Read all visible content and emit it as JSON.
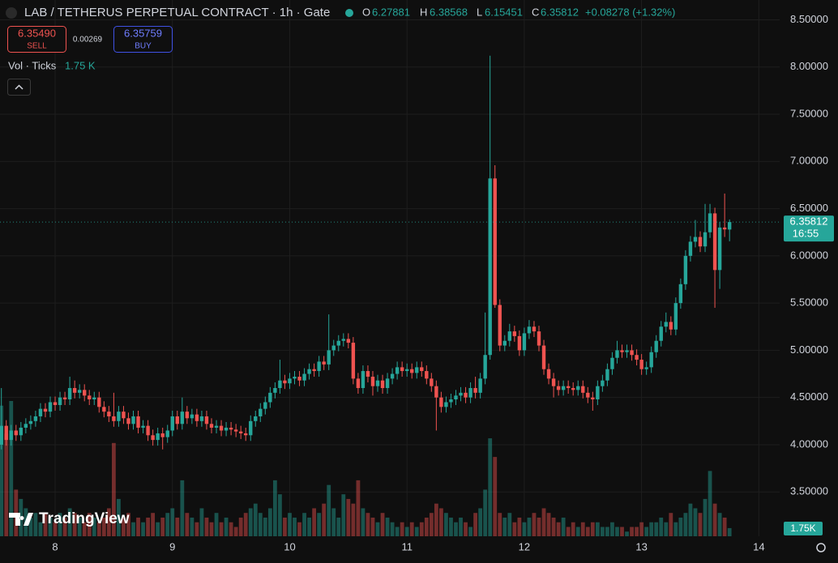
{
  "header": {
    "title": "LAB / TETHERUS PERPETUAL CONTRACT · 1h · Gate",
    "ohlc_labels": [
      "O",
      "H",
      "L",
      "C"
    ],
    "change": "+0.08278 (+1.32%)",
    "sell": {
      "price": "6.35490",
      "label": "SELL"
    },
    "spread": "0.00269",
    "buy": {
      "price": "6.35759",
      "label": "BUY"
    },
    "volume_legend": {
      "name": "Vol · Ticks",
      "value": "1.75 K"
    },
    "logo": "TradingView"
  },
  "chart_data": {
    "type": "candlestick",
    "up_color": "#26a69a",
    "down_color": "#ef5350",
    "grid": true,
    "ylim": [
      3.03,
      8.71
    ],
    "yticks": [
      {
        "value": 3.5,
        "label": "3.50000"
      },
      {
        "value": 4.0,
        "label": "4.00000"
      },
      {
        "value": 4.5,
        "label": "4.50000"
      },
      {
        "value": 5.0,
        "label": "5.00000"
      },
      {
        "value": 5.5,
        "label": "5.50000"
      },
      {
        "value": 6.0,
        "label": "6.00000"
      },
      {
        "value": 6.5,
        "label": "6.50000"
      },
      {
        "value": 7.0,
        "label": "7.00000"
      },
      {
        "value": 7.5,
        "label": "7.50000"
      },
      {
        "value": 8.0,
        "label": "8.00000"
      },
      {
        "value": 8.5,
        "label": "8.50000"
      }
    ],
    "price_label_time": "16:55",
    "volume_label": "1.75K",
    "categories": [
      null,
      null,
      null,
      null,
      null,
      null,
      null,
      null,
      null,
      null,
      null,
      "8",
      null,
      null,
      null,
      null,
      null,
      null,
      null,
      null,
      null,
      null,
      null,
      null,
      null,
      null,
      null,
      null,
      null,
      null,
      null,
      null,
      null,
      null,
      null,
      "9",
      null,
      null,
      null,
      null,
      null,
      null,
      null,
      null,
      null,
      null,
      null,
      null,
      null,
      null,
      null,
      null,
      null,
      null,
      null,
      null,
      null,
      null,
      null,
      "10",
      null,
      null,
      null,
      null,
      null,
      null,
      null,
      null,
      null,
      null,
      null,
      null,
      null,
      null,
      null,
      null,
      null,
      null,
      null,
      null,
      null,
      null,
      null,
      "11",
      null,
      null,
      null,
      null,
      null,
      null,
      null,
      null,
      null,
      null,
      null,
      null,
      null,
      null,
      null,
      null,
      null,
      null,
      null,
      null,
      null,
      null,
      null,
      "12",
      null,
      null,
      null,
      null,
      null,
      null,
      null,
      null,
      null,
      null,
      null,
      null,
      null,
      null,
      null,
      null,
      null,
      null,
      null,
      null,
      null,
      null,
      null,
      "13",
      null,
      null,
      null,
      null,
      null,
      null,
      null,
      null,
      null,
      null,
      null,
      null,
      null,
      null,
      null,
      null,
      null,
      null,
      null,
      null,
      null,
      null,
      null,
      "14"
    ],
    "open": [
      4.0,
      4.2,
      4.05,
      4.15,
      4.1,
      4.18,
      4.22,
      4.25,
      4.3,
      4.38,
      4.35,
      4.45,
      4.42,
      4.5,
      4.48,
      4.6,
      4.55,
      4.58,
      4.52,
      4.48,
      4.5,
      4.4,
      4.35,
      4.3,
      4.25,
      4.35,
      4.28,
      4.22,
      4.3,
      4.18,
      4.2,
      4.1,
      4.05,
      4.12,
      4.08,
      4.15,
      4.3,
      4.22,
      4.35,
      4.28,
      4.32,
      4.25,
      4.3,
      4.22,
      4.18,
      4.2,
      4.15,
      4.18,
      4.16,
      4.14,
      4.12,
      4.1,
      4.25,
      4.3,
      4.38,
      4.45,
      4.55,
      4.6,
      4.68,
      4.65,
      4.7,
      4.72,
      4.68,
      4.75,
      4.8,
      4.78,
      4.88,
      4.85,
      5.0,
      5.05,
      5.1,
      5.12,
      5.08,
      4.7,
      4.6,
      4.78,
      4.72,
      4.62,
      4.68,
      4.6,
      4.7,
      4.75,
      4.82,
      4.78,
      4.8,
      4.76,
      4.82,
      4.78,
      4.7,
      4.62,
      4.5,
      4.4,
      4.45,
      4.48,
      4.52,
      4.55,
      4.5,
      4.6,
      4.55,
      4.7,
      4.95,
      6.82,
      5.48,
      5.05,
      5.1,
      5.2,
      5.15,
      5.0,
      5.18,
      5.25,
      5.2,
      5.05,
      4.8,
      4.7,
      4.62,
      4.58,
      4.62,
      4.6,
      4.58,
      4.62,
      4.55,
      4.5,
      4.48,
      4.62,
      4.68,
      4.8,
      4.92,
      5.0,
      4.98,
      5.0,
      4.95,
      4.9,
      4.8,
      4.82,
      4.98,
      5.1,
      5.25,
      5.3,
      5.22,
      5.5,
      5.7,
      6.0,
      6.15,
      6.2,
      6.1,
      6.25,
      6.45,
      5.85,
      6.3,
      6.27881,
      null,
      null,
      null,
      null,
      null,
      null
    ],
    "high": [
      4.6,
      4.26,
      4.21,
      4.21,
      4.24,
      4.28,
      4.31,
      4.36,
      4.44,
      4.44,
      4.51,
      4.51,
      4.56,
      4.56,
      4.72,
      4.68,
      4.64,
      4.64,
      4.58,
      4.56,
      4.56,
      4.46,
      4.41,
      4.55,
      4.41,
      4.41,
      4.34,
      4.36,
      4.36,
      4.26,
      4.26,
      4.16,
      4.18,
      4.18,
      4.21,
      4.36,
      4.36,
      4.5,
      4.41,
      4.38,
      4.38,
      4.36,
      4.36,
      4.28,
      4.26,
      4.26,
      4.24,
      4.24,
      4.22,
      4.2,
      4.18,
      4.31,
      4.36,
      4.44,
      4.51,
      4.61,
      4.66,
      4.9,
      4.74,
      4.76,
      4.78,
      4.78,
      4.81,
      4.86,
      4.86,
      4.94,
      4.94,
      5.38,
      5.11,
      5.16,
      5.18,
      5.18,
      5.14,
      4.76,
      4.84,
      4.84,
      4.78,
      4.74,
      4.74,
      4.76,
      4.81,
      4.88,
      4.88,
      4.86,
      4.86,
      4.88,
      4.88,
      4.84,
      4.76,
      4.68,
      4.56,
      4.51,
      4.54,
      4.58,
      4.61,
      4.61,
      4.66,
      4.72,
      4.76,
      5.4,
      8.12,
      6.96,
      5.54,
      5.16,
      5.28,
      5.26,
      5.21,
      5.24,
      5.32,
      5.31,
      5.26,
      5.11,
      4.86,
      4.76,
      4.68,
      4.68,
      4.68,
      4.66,
      4.68,
      4.68,
      4.61,
      4.56,
      4.68,
      4.74,
      4.86,
      4.98,
      5.1,
      5.06,
      5.06,
      5.06,
      5.01,
      4.96,
      4.88,
      5.04,
      5.16,
      5.31,
      5.4,
      5.36,
      5.56,
      5.76,
      6.06,
      6.21,
      6.38,
      6.26,
      6.55,
      6.55,
      6.51,
      6.36,
      6.66,
      6.38568,
      null,
      null,
      null,
      null,
      null,
      null
    ],
    "low": [
      3.95,
      3.99,
      3.99,
      4.04,
      4.04,
      4.12,
      4.16,
      4.19,
      4.24,
      4.29,
      4.29,
      4.36,
      4.36,
      4.42,
      4.42,
      4.49,
      4.49,
      4.46,
      4.42,
      4.42,
      4.34,
      4.29,
      4.24,
      4.19,
      4.19,
      4.22,
      4.16,
      4.16,
      4.12,
      4.12,
      4.04,
      3.99,
      3.99,
      3.95,
      4.02,
      4.09,
      4.16,
      4.16,
      4.22,
      4.22,
      4.19,
      4.19,
      4.16,
      4.12,
      4.12,
      4.09,
      4.09,
      4.1,
      4.08,
      4.06,
      4.04,
      4.04,
      4.19,
      4.24,
      4.32,
      4.39,
      4.49,
      4.54,
      4.59,
      4.59,
      4.64,
      4.62,
      4.62,
      4.69,
      4.72,
      4.72,
      4.79,
      4.79,
      4.94,
      4.99,
      5.04,
      5.02,
      4.64,
      4.54,
      4.54,
      4.66,
      4.52,
      4.56,
      4.54,
      4.54,
      4.64,
      4.69,
      4.72,
      4.72,
      4.7,
      4.7,
      4.72,
      4.64,
      4.56,
      4.15,
      4.34,
      4.34,
      4.39,
      4.42,
      4.46,
      4.44,
      4.44,
      4.49,
      4.49,
      4.64,
      4.9,
      5.45,
      4.99,
      4.99,
      5.04,
      5.09,
      4.94,
      4.94,
      5.12,
      5.14,
      4.99,
      4.74,
      4.64,
      4.5,
      4.52,
      4.52,
      4.54,
      4.52,
      4.52,
      4.49,
      4.44,
      4.36,
      4.42,
      4.56,
      4.62,
      4.74,
      4.86,
      4.92,
      4.92,
      4.89,
      4.84,
      4.74,
      4.74,
      4.76,
      4.92,
      5.04,
      5.19,
      5.16,
      5.16,
      5.44,
      5.64,
      5.94,
      6.09,
      6.04,
      6.04,
      6.19,
      5.45,
      5.65,
      6.2,
      6.15451,
      null,
      null,
      null,
      null,
      null,
      null
    ],
    "close": [
      4.2,
      4.05,
      4.15,
      4.1,
      4.18,
      4.22,
      4.25,
      4.3,
      4.38,
      4.35,
      4.45,
      4.42,
      4.5,
      4.48,
      4.6,
      4.55,
      4.58,
      4.52,
      4.48,
      4.5,
      4.4,
      4.35,
      4.3,
      4.25,
      4.35,
      4.28,
      4.22,
      4.3,
      4.18,
      4.2,
      4.1,
      4.05,
      4.12,
      4.08,
      4.15,
      4.3,
      4.22,
      4.35,
      4.28,
      4.32,
      4.25,
      4.3,
      4.22,
      4.18,
      4.2,
      4.15,
      4.18,
      4.16,
      4.14,
      4.12,
      4.1,
      4.25,
      4.3,
      4.38,
      4.45,
      4.55,
      4.6,
      4.68,
      4.65,
      4.7,
      4.72,
      4.68,
      4.75,
      4.8,
      4.78,
      4.88,
      4.85,
      5.0,
      5.05,
      5.1,
      5.12,
      5.08,
      4.7,
      4.6,
      4.78,
      4.72,
      4.62,
      4.68,
      4.6,
      4.7,
      4.75,
      4.82,
      4.78,
      4.8,
      4.76,
      4.82,
      4.78,
      4.7,
      4.62,
      4.5,
      4.4,
      4.45,
      4.48,
      4.52,
      4.55,
      4.5,
      4.6,
      4.55,
      4.7,
      4.95,
      6.82,
      5.48,
      5.05,
      5.1,
      5.2,
      5.15,
      5.0,
      5.18,
      5.25,
      5.2,
      5.05,
      4.8,
      4.7,
      4.62,
      4.58,
      4.62,
      4.6,
      4.58,
      4.62,
      4.55,
      4.5,
      4.48,
      4.62,
      4.68,
      4.8,
      4.92,
      5.0,
      4.98,
      5.0,
      4.95,
      4.9,
      4.8,
      4.82,
      4.98,
      5.1,
      5.25,
      5.3,
      5.22,
      5.5,
      5.7,
      6.0,
      6.15,
      6.2,
      6.1,
      6.25,
      6.45,
      5.85,
      6.3,
      6.28,
      6.35812,
      null,
      null,
      null,
      null,
      null,
      null
    ],
    "volume": [
      28,
      22,
      29,
      10,
      8,
      6,
      4,
      5,
      3,
      5,
      4,
      3,
      5,
      4,
      6,
      5,
      4,
      3,
      5,
      4,
      3,
      4,
      6,
      20,
      8,
      4,
      5,
      3,
      4,
      3,
      4,
      5,
      3,
      4,
      5,
      6,
      4,
      12,
      5,
      4,
      3,
      6,
      4,
      3,
      5,
      3,
      4,
      3,
      2,
      4,
      5,
      6,
      7,
      5,
      4,
      6,
      12,
      9,
      4,
      5,
      4,
      3,
      5,
      4,
      6,
      5,
      7,
      11,
      6,
      4,
      9,
      8,
      7,
      12,
      6,
      5,
      4,
      3,
      5,
      4,
      3,
      2,
      3,
      2,
      3,
      2,
      3,
      4,
      5,
      7,
      6,
      5,
      4,
      3,
      4,
      3,
      2,
      5,
      6,
      10,
      21,
      17,
      5,
      4,
      5,
      3,
      4,
      3,
      4,
      5,
      4,
      6,
      5,
      4,
      3,
      4,
      2,
      3,
      2,
      3,
      2,
      3,
      3,
      2,
      2,
      3,
      2,
      2,
      1,
      2,
      2,
      3,
      2,
      3,
      3,
      4,
      3,
      5,
      3,
      4,
      5,
      7,
      6,
      5,
      8,
      14,
      7,
      5,
      4,
      1.75,
      null,
      null,
      null,
      null,
      null,
      null
    ]
  }
}
